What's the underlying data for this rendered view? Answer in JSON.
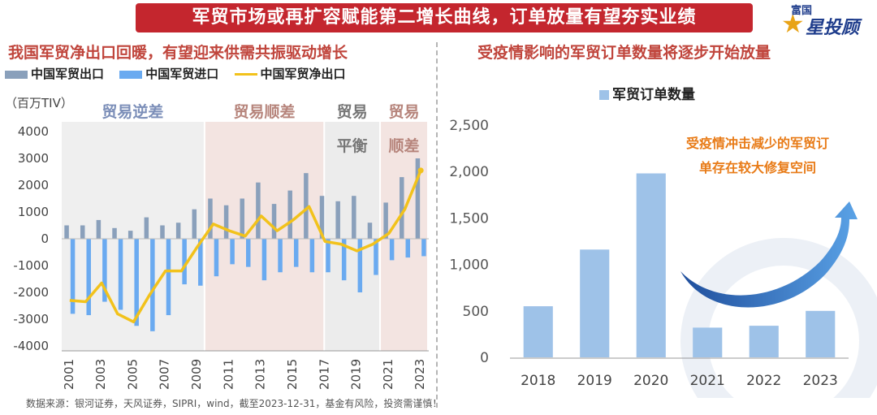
{
  "header": {
    "title": "军贸市场或再扩容赋能第二增长曲线，订单放量有望夯实业绩",
    "logo_brand": "富国",
    "logo_main": "星投顾"
  },
  "colors": {
    "banner": "#c4262e",
    "subtitle": "#c0453c",
    "export": "#8aa0bb",
    "import": "#6aaaf0",
    "net": "#f2c21b",
    "orders": "#9ec2e8",
    "annot_orange": "#e87b17"
  },
  "left_panel": {
    "subtitle": "我国军贸净出口回暖，有望迎来供需共振驱动增长",
    "legend": [
      "中国军贸出口",
      "中国军贸进口",
      "中国军贸净出口"
    ],
    "unit": "（百万TIV）"
  },
  "right_panel": {
    "subtitle": "受疫情影响的军贸订单数量将逐步开始放量",
    "legend": "军贸订单数量",
    "annotation_line1": "受疫情冲击减少的军贸订",
    "annotation_line2": "单存在较大修复空间"
  },
  "footer": {
    "source": "数据来源：银河证券，天风证券，SIPRI，wind，截至2023-12-31，基金有风险，投资需谨慎！"
  },
  "chart_data": [
    {
      "type": "bar",
      "x": [
        "2001",
        "2002",
        "2003",
        "2004",
        "2005",
        "2006",
        "2007",
        "2008",
        "2009",
        "2010",
        "2011",
        "2012",
        "2013",
        "2014",
        "2015",
        "2016",
        "2017",
        "2018",
        "2019",
        "2020",
        "2021",
        "2022",
        "2023"
      ],
      "x_tick_labels": [
        "2001",
        "2003",
        "2005",
        "2007",
        "2009",
        "2011",
        "2013",
        "2015",
        "2017",
        "2019",
        "2021",
        "2023"
      ],
      "series": [
        {
          "name": "中国军贸出口",
          "kind": "bar",
          "color": "#8aa0bb",
          "values": [
            500,
            500,
            700,
            400,
            300,
            800,
            500,
            600,
            1100,
            1500,
            1250,
            1500,
            2100,
            1300,
            1800,
            2450,
            1600,
            1400,
            1600,
            600,
            1350,
            2300,
            3000
          ]
        },
        {
          "name": "中国军贸进口",
          "kind": "bar",
          "color": "#6aaaf0",
          "values": [
            -2800,
            -2850,
            -2350,
            -2650,
            -3250,
            -3450,
            -2850,
            -1700,
            -1750,
            -1400,
            -950,
            -1050,
            -1550,
            -1250,
            -1050,
            -1250,
            -1250,
            -1550,
            -2000,
            -1350,
            -800,
            -700,
            -650
          ]
        },
        {
          "name": "中国军贸净出口",
          "kind": "line",
          "color": "#f2c21b",
          "values": [
            -2300,
            -2350,
            -1650,
            -2800,
            -3100,
            -2100,
            -1200,
            -1200,
            -300,
            550,
            300,
            100,
            850,
            300,
            700,
            1200,
            -100,
            -200,
            -450,
            -200,
            200,
            1100,
            2550
          ]
        }
      ],
      "ylim": [
        -4000,
        4000
      ],
      "yticks": [
        "-4000",
        "-3000",
        "-2000",
        "-1000",
        "0",
        "1000",
        "2000",
        "3000",
        "4000"
      ],
      "ylabel": "百万TIV",
      "regions": [
        {
          "from": "2001",
          "to": "2009",
          "label": "贸易逆差",
          "fill": "#efefef",
          "label_color": "#7b8eb8"
        },
        {
          "from": "2010",
          "to": "2017",
          "label": "贸易顺差",
          "fill": "#f3e4e1",
          "label_color": "#b6847b"
        },
        {
          "from": "2017",
          "to": "2020",
          "label": "贸易平衡",
          "fill": "#ececec",
          "label_color": "#777777"
        },
        {
          "from": "2021",
          "to": "2023",
          "label": "贸易顺差",
          "fill": "#f3e4e1",
          "label_color": "#b6847b"
        }
      ],
      "grid": false
    },
    {
      "type": "bar",
      "categories": [
        "2018",
        "2019",
        "2020",
        "2021",
        "2022",
        "2023"
      ],
      "series": [
        {
          "name": "军贸订单数量",
          "values": [
            550,
            1160,
            1980,
            320,
            340,
            500
          ]
        }
      ],
      "ylim": [
        0,
        2500
      ],
      "yticks": [
        "0",
        "500",
        "1,000",
        "1,500",
        "2,000",
        "2,500"
      ],
      "grid": false
    }
  ]
}
